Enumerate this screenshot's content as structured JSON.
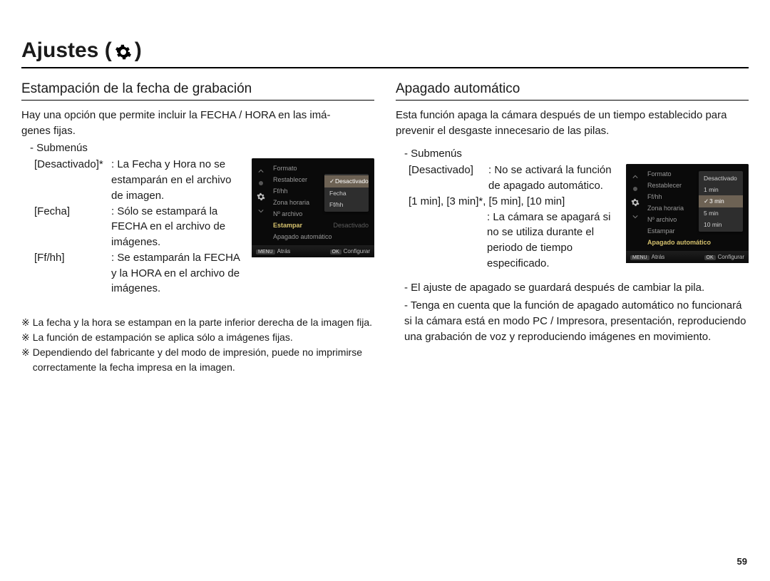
{
  "page_title": "Ajustes (",
  "page_title_close": ")",
  "page_number": "59",
  "colors": {
    "text": "#1a1a1a",
    "scr_bg": "#0a0a0a",
    "scr_text": "#c9c9c9",
    "scr_dim": "#5d5d5d",
    "scr_highlight": "#d6c26e",
    "popup_bg": "#2e2e2e",
    "popup_sel_bg": "#6d6254"
  },
  "left": {
    "heading": "Estampación de la fecha de grabación",
    "intro": "Hay una opción que permite incluir la FECHA / HORA en las imá-\ngenes fijas.",
    "submenu_label": "- Submenús",
    "items": [
      {
        "label": "[Desactivado]*",
        "colon": ":",
        "desc": "La Fecha y Hora no se estamparán en el archivo de imagen."
      },
      {
        "label": "[Fecha]",
        "colon": ":",
        "desc": "Sólo se estampará la FECHA en el archivo de imágenes."
      },
      {
        "label": "[Ff/hh]",
        "colon": ":",
        "desc": "Se estamparán la FECHA y la HORA en el archivo de imágenes."
      }
    ],
    "notes": [
      "La fecha y la hora se estampan en la parte inferior derecha de la imagen fija.",
      "La función de estampación se aplica sólo a imágenes fijas.",
      "Dependiendo del fabricante y del modo de impresión, puede no imprimirse correctamente la fecha impresa en la imagen."
    ],
    "note_mark": "※",
    "scr": {
      "menu": [
        "Formato",
        "Restablecer",
        "Ff/hh",
        "Zona horaria",
        "Nº archivo",
        "Estampar",
        "Apagado automático"
      ],
      "highlight_index": 5,
      "right_value": "Desactivado",
      "popup": [
        "Desactivado",
        "Fecha",
        "Ff/hh"
      ],
      "popup_selected": 0,
      "footer_left": "Atrás",
      "footer_left_key": "MENU",
      "footer_right": "Configurar",
      "footer_right_key": "OK"
    }
  },
  "right": {
    "heading": "Apagado automático",
    "intro": "Esta función apaga la cámara después de un tiempo establecido para prevenir el desgaste innecesario de las pilas.",
    "submenu_label": "- Submenús",
    "item_label": "[Desactivado]",
    "item_colon": ":",
    "item_desc": "No se activará la función de apagado automático.",
    "times": "[1 min], [3 min]*, [5 min], [10 min]",
    "times_desc_prefix": ": ",
    "times_desc": "La cámara se apagará si no se utiliza durante el periodo de tiempo especificado.",
    "bul1": "- El ajuste de apagado se guardará después de cambiar la pila.",
    "bul2": "- Tenga en cuenta que la función de apagado automático no funcionará si la cámara está en modo PC / Impresora, presentación, reproduciendo una grabación de voz y reproduciendo imágenes en movimiento.",
    "scr": {
      "menu": [
        "Formato",
        "Restablecer",
        "Ff/hh",
        "Zona horaria",
        "Nº archivo",
        "Estampar",
        "Apagado automático"
      ],
      "highlight_index": 6,
      "popup": [
        "Desactivado",
        "1 min",
        "3 min",
        "5 min",
        "10 min"
      ],
      "popup_selected": 2,
      "footer_left": "Atrás",
      "footer_left_key": "MENU",
      "footer_right": "Configurar",
      "footer_right_key": "OK"
    }
  }
}
